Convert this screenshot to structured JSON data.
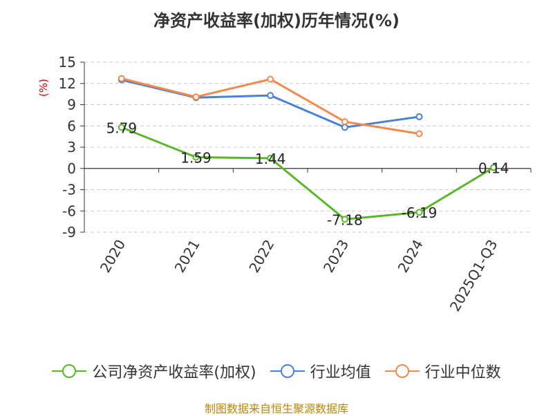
{
  "chart_data": {
    "type": "line",
    "title": "净资产收益率(加权)历年情况(%)",
    "ylabel": "(%)",
    "ylim": [
      -9,
      15
    ],
    "yticks": [
      15,
      12,
      9,
      6,
      3,
      0,
      -3,
      -6,
      -9
    ],
    "categories": [
      "2020",
      "2021",
      "2022",
      "2023",
      "2024",
      "2025Q1-Q3"
    ],
    "grid": true,
    "legend_position": "bottom",
    "series": [
      {
        "name": "公司净资产收益率(加权)",
        "color": "#5ab528",
        "values": [
          5.79,
          1.59,
          1.44,
          -7.18,
          -6.19,
          0.14
        ],
        "labels": [
          "5.79",
          "1.59",
          "1.44",
          "-7.18",
          "-6.19",
          "0.14"
        ]
      },
      {
        "name": "行业均值",
        "color": "#4a7fd8",
        "values": [
          12.5,
          10.0,
          10.3,
          5.8,
          7.3,
          null
        ]
      },
      {
        "name": "行业中位数",
        "color": "#f5884e",
        "values": [
          12.7,
          10.1,
          12.6,
          6.6,
          4.9,
          null
        ]
      }
    ]
  },
  "footer": {
    "source": "制图数据来自恒生聚源数据库"
  }
}
